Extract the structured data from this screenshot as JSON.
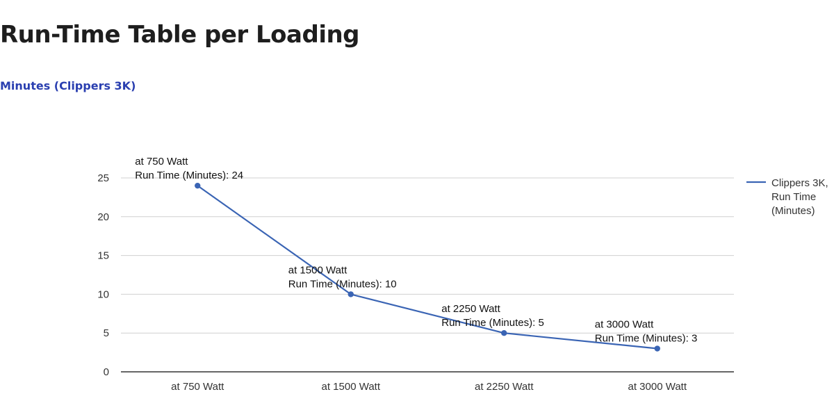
{
  "page": {
    "title": "Run-Time Table per Loading",
    "subtitle": "Minutes (Clippers 3K)"
  },
  "chart_data": {
    "type": "line",
    "title": "",
    "xlabel": "",
    "ylabel": "",
    "categories": [
      "at 750 Watt",
      "at 1500 Watt",
      "at 2250 Watt",
      "at 3000 Watt"
    ],
    "series": [
      {
        "name": "Clippers 3K, Run Time (Minutes)",
        "legend_lines": [
          "Clippers 3K,",
          "Run Time",
          "(Minutes)"
        ],
        "values": [
          24,
          10,
          5,
          3
        ],
        "color": "#3a64b4"
      }
    ],
    "data_labels": [
      [
        "at 750 Watt",
        "Run Time (Minutes): 24"
      ],
      [
        "at 1500 Watt",
        "Run Time (Minutes): 10"
      ],
      [
        "at 2250 Watt",
        "Run Time (Minutes): 5"
      ],
      [
        "at 3000 Watt",
        "Run Time (Minutes): 3"
      ]
    ],
    "yticks": [
      0,
      5,
      10,
      15,
      20,
      25
    ],
    "ylim": [
      0,
      25
    ],
    "grid": true,
    "legend_position": "right",
    "colors": {
      "line": "#3a64b4",
      "grid": "#d0d0d0",
      "axis": "#333333"
    }
  }
}
